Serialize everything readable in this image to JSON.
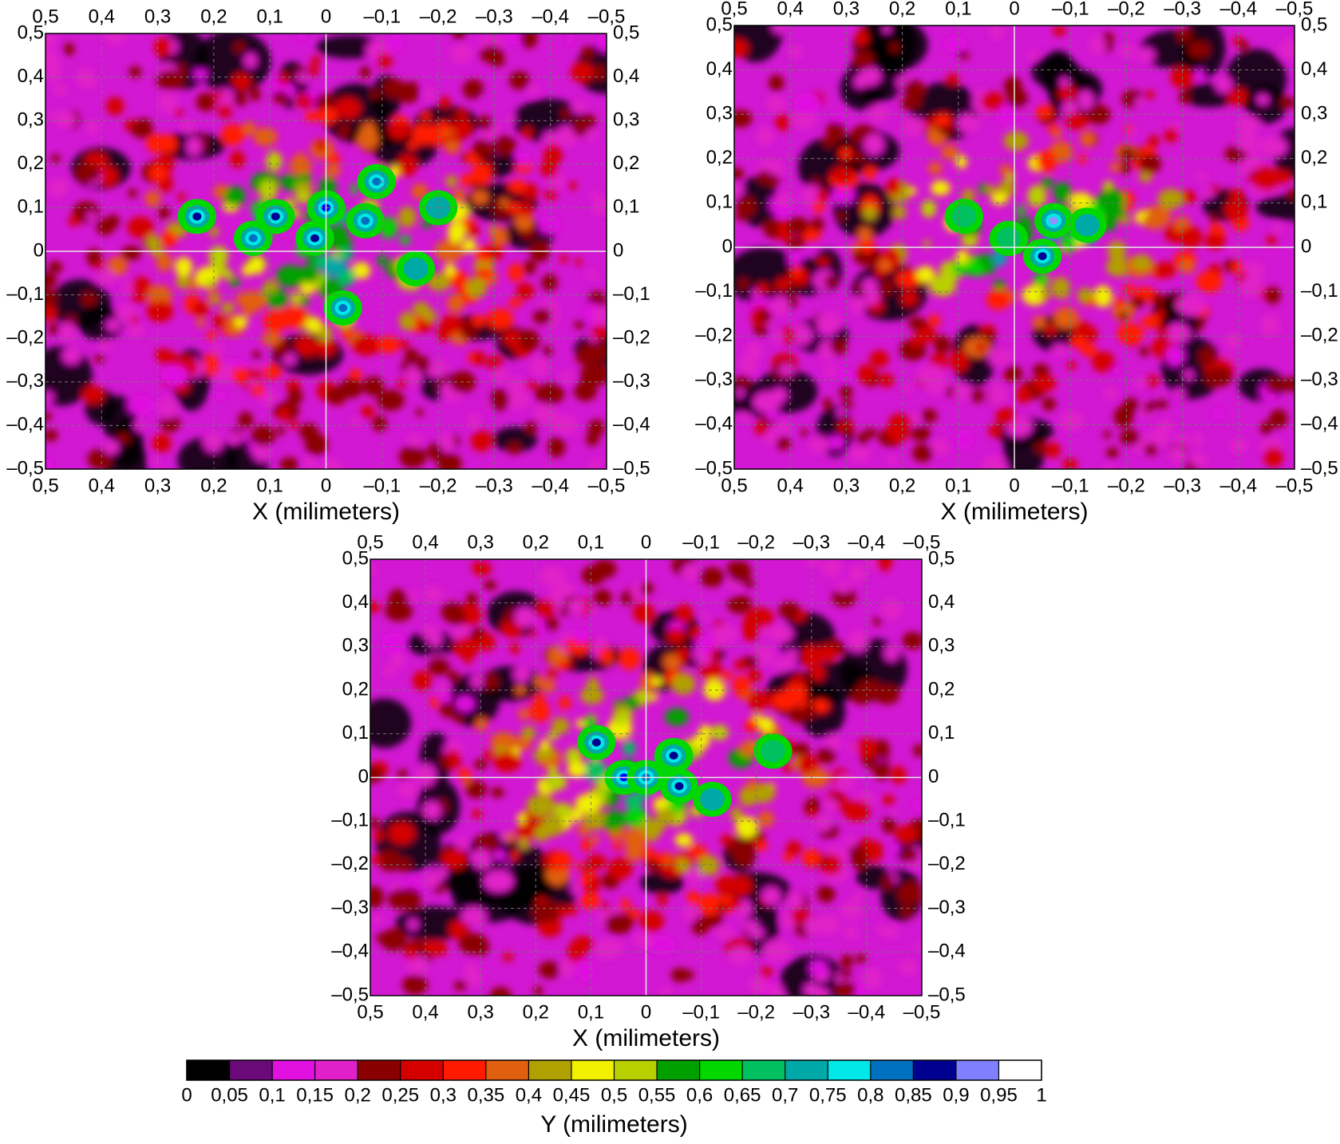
{
  "chart_data": [
    {
      "type": "heatmap",
      "panel": "top-left",
      "x_axis": {
        "label": "X (milimeters)",
        "range": [
          0.5,
          -0.5
        ],
        "reversed": true
      },
      "y_axis": {
        "range": [
          -0.5,
          0.5
        ]
      },
      "x_ticks": [
        "0,5",
        "0,4",
        "0,3",
        "0,2",
        "0,1",
        "0",
        "–0,1",
        "–0,2",
        "–0,3",
        "–0,4",
        "–0,5"
      ],
      "y_ticks": [
        "0,5",
        "0,4",
        "0,3",
        "0,2",
        "0,1",
        "0",
        "–0,1",
        "–0,2",
        "–0,3",
        "–0,4",
        "–0,5"
      ],
      "grid": true,
      "peak_value": 0.95,
      "hotspots": [
        {
          "x": 0.0,
          "y": 0.1,
          "value": 0.9
        },
        {
          "x": 0.23,
          "y": 0.08,
          "value": 0.85
        },
        {
          "x": 0.13,
          "y": 0.03,
          "value": 0.82
        },
        {
          "x": 0.09,
          "y": 0.08,
          "value": 0.85
        },
        {
          "x": 0.02,
          "y": 0.03,
          "value": 0.88
        },
        {
          "x": -0.07,
          "y": 0.07,
          "value": 0.8
        },
        {
          "x": -0.09,
          "y": 0.16,
          "value": 0.82
        },
        {
          "x": -0.03,
          "y": -0.13,
          "value": 0.8
        },
        {
          "x": -0.2,
          "y": 0.1,
          "value": 0.72
        },
        {
          "x": -0.16,
          "y": -0.04,
          "value": 0.74
        }
      ]
    },
    {
      "type": "heatmap",
      "panel": "top-right",
      "x_axis": {
        "label": "X (milimeters)",
        "range": [
          0.5,
          -0.5
        ],
        "reversed": true
      },
      "y_axis": {
        "range": [
          -0.5,
          0.5
        ]
      },
      "x_ticks": [
        "0,5",
        "0,4",
        "0,3",
        "0,2",
        "0,1",
        "0",
        "–0,1",
        "–0,2",
        "–0,3",
        "–0,4",
        "–0,5"
      ],
      "y_ticks": [
        "0,5",
        "0,4",
        "0,3",
        "0,2",
        "0,1",
        "0",
        "–0,1",
        "–0,2",
        "–0,3",
        "–0,4",
        "–0,5"
      ],
      "grid": true,
      "peak_value": 0.95,
      "hotspots": [
        {
          "x": -0.07,
          "y": 0.06,
          "value": 0.95
        },
        {
          "x": -0.05,
          "y": -0.02,
          "value": 0.85
        },
        {
          "x": -0.13,
          "y": 0.05,
          "value": 0.72
        },
        {
          "x": 0.09,
          "y": 0.07,
          "value": 0.65
        },
        {
          "x": 0.01,
          "y": 0.02,
          "value": 0.68
        }
      ]
    },
    {
      "type": "heatmap",
      "panel": "bottom-center",
      "x_axis": {
        "label": "X (milimeters)",
        "range": [
          0.5,
          -0.5
        ],
        "reversed": true
      },
      "y_axis": {
        "range": [
          -0.5,
          0.5
        ]
      },
      "x_ticks": [
        "0,5",
        "0,4",
        "0,3",
        "0,2",
        "0,1",
        "0",
        "–0,1",
        "–0,2",
        "–0,3",
        "–0,4",
        "–0,5"
      ],
      "y_ticks": [
        "0,5",
        "0,4",
        "0,3",
        "0,2",
        "0,1",
        "0",
        "–0,1",
        "–0,2",
        "–0,3",
        "–0,4",
        "–0,5"
      ],
      "grid": true,
      "peak_value": 0.95,
      "hotspots": [
        {
          "x": 0.09,
          "y": 0.08,
          "value": 0.88
        },
        {
          "x": 0.04,
          "y": 0.0,
          "value": 0.9
        },
        {
          "x": -0.05,
          "y": 0.05,
          "value": 0.86
        },
        {
          "x": -0.06,
          "y": -0.02,
          "value": 0.86
        },
        {
          "x": 0.0,
          "y": 0.0,
          "value": 0.8
        },
        {
          "x": -0.12,
          "y": -0.05,
          "value": 0.7
        },
        {
          "x": -0.23,
          "y": 0.06,
          "value": 0.66
        }
      ]
    }
  ],
  "colorbar": {
    "label": "Y (milimeters)",
    "tick_labels": [
      "0",
      "0,05",
      "0,1",
      "0,15",
      "0,2",
      "0,25",
      "0,3",
      "0,35",
      "0,4",
      "0,45",
      "0,5",
      "0,55",
      "0,6",
      "0,65",
      "0,7",
      "0,75",
      "0,8",
      "0,85",
      "0,9",
      "0,95",
      "1"
    ],
    "colors": [
      "#000000",
      "#6a0a78",
      "#e010e0",
      "#e020c8",
      "#8a0000",
      "#d40000",
      "#ff1a00",
      "#e06010",
      "#b0a000",
      "#f0f000",
      "#b8d000",
      "#00a000",
      "#00d800",
      "#00c060",
      "#00a8a8",
      "#00e8e8",
      "#0070c0",
      "#000090",
      "#0000ff",
      "#9090ff"
    ],
    "last_color": "#ffffff"
  }
}
